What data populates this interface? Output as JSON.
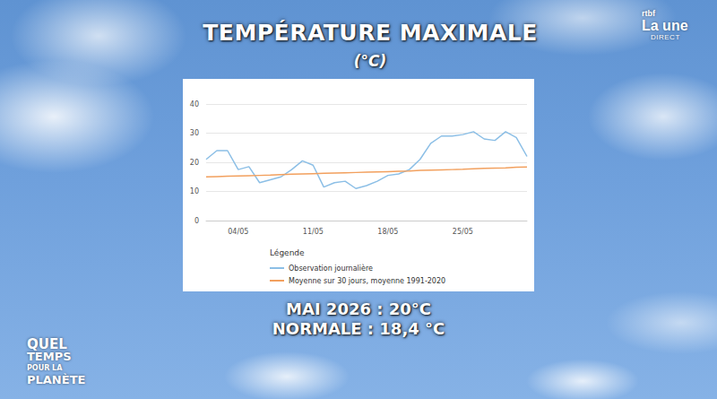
{
  "channel": {
    "brand": "rtbf",
    "name": "La une",
    "status": "DIRECT"
  },
  "show": {
    "lines": [
      "QUEL",
      "TEMPS",
      "POUR LA",
      "PLANÈTE"
    ]
  },
  "summary": {
    "lines": [
      "MAI 2026 : 20°C",
      "NORMALE : 18,4 °C"
    ]
  },
  "chart_data": {
    "type": "line",
    "title": "TEMPÉRATURE MAXIMALE",
    "subtitle": "(°C)",
    "legend_title": "Légende",
    "categories": [
      null,
      null,
      null,
      "04/05",
      null,
      null,
      null,
      null,
      null,
      null,
      "11/05",
      null,
      null,
      null,
      null,
      null,
      null,
      "18/05",
      null,
      null,
      null,
      null,
      null,
      null,
      "25/05",
      null,
      null,
      null,
      null,
      null,
      null
    ],
    "series": [
      {
        "name": "Observation journalière",
        "color": "#8cbfe6",
        "values": [
          21,
          24,
          24,
          17.5,
          18.5,
          13,
          14,
          15,
          17.5,
          20.5,
          19,
          11.5,
          13,
          13.5,
          11,
          12,
          13.5,
          15.5,
          16,
          17.5,
          21,
          26.5,
          29,
          29,
          29.5,
          30.5,
          28,
          27.5,
          30.5,
          28.5,
          22
        ]
      },
      {
        "name": "Moyenne sur 30 jours, moyenne 1991-2020",
        "color": "#f2a05e",
        "values": [
          15.0,
          15.1,
          15.2,
          15.3,
          15.4,
          15.5,
          15.6,
          15.8,
          15.9,
          16.0,
          16.1,
          16.2,
          16.3,
          16.4,
          16.5,
          16.6,
          16.7,
          16.8,
          16.9,
          17.0,
          17.2,
          17.3,
          17.4,
          17.5,
          17.6,
          17.8,
          17.9,
          18.0,
          18.1,
          18.3,
          18.4
        ]
      }
    ],
    "ylim": [
      0,
      40
    ],
    "yticks": [
      0,
      10,
      20,
      30,
      40
    ],
    "grid": true,
    "legend": "bottom-left"
  }
}
